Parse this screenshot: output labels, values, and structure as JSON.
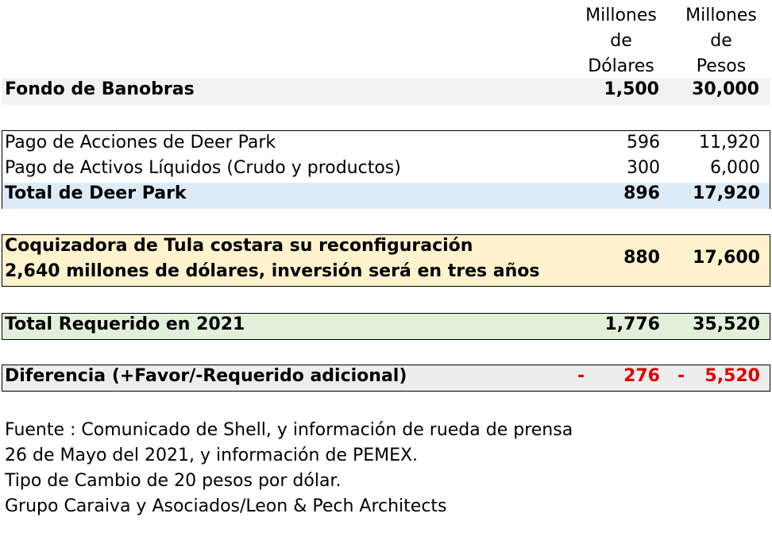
{
  "header": {
    "col_dolares": [
      "Millones",
      "de",
      "Dólares"
    ],
    "col_pesos": [
      "Millones",
      "de",
      "Pesos"
    ]
  },
  "fondo": {
    "label": "Fondo de Banobras",
    "dolares": "1,500",
    "pesos": "30,000"
  },
  "deer_park": {
    "rows": [
      {
        "label": "Pago de Acciones de Deer Park",
        "dolares": "596",
        "pesos": "11,920"
      },
      {
        "label": "Pago de Activos Líquidos (Crudo y productos)",
        "dolares": "300",
        "pesos": "6,000"
      }
    ],
    "total": {
      "label": "Total de Deer Park",
      "dolares": "896",
      "pesos": "17,920"
    }
  },
  "tula": {
    "line1": "Coquizadora de Tula costara su reconfiguración",
    "line2": "2,640 millones de dólares, inversión será en tres años",
    "dolares": "880",
    "pesos": "17,600"
  },
  "total_requerido": {
    "label": "Total Requerido en 2021",
    "dolares": "1,776",
    "pesos": "35,520"
  },
  "diferencia": {
    "label": "Diferencia (+Favor/-Requerido adicional)",
    "sign": "-",
    "dolares": "276",
    "pesos": "5,520"
  },
  "notes": [
    "Fuente : Comunicado de Shell, y información de rueda de prensa",
    "26 de Mayo del 2021, y información de PEMEX.",
    "Tipo de Cambio de 20 pesos por dólar.",
    "Grupo Caraiva y Asociados/Leon & Pech Architects"
  ],
  "colors": {
    "fondo_bg": "#f2f2f2",
    "deer_total_bg": "#ddebf7",
    "tula_bg": "#fff2cc",
    "total_bg": "#e2efda",
    "diff_bg": "#ededed",
    "negative": "#e00000"
  }
}
